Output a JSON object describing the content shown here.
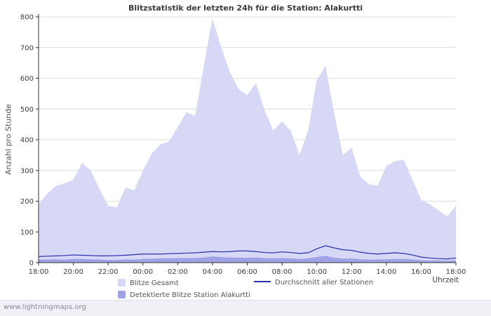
{
  "page": {
    "watermark": "www.lightningmaps.org"
  },
  "chart_data": {
    "type": "area",
    "title": "Blitzstatistik der letzten 24h für die Station: Alakurtti",
    "ylabel": "Anzahl pro Stunde",
    "xlabel": "Uhrzeit",
    "ylim": [
      0,
      800
    ],
    "y_ticks": [
      0,
      100,
      200,
      300,
      400,
      500,
      600,
      700,
      800
    ],
    "x_tick_labels": [
      "18:00",
      "20:00",
      "22:00",
      "00:00",
      "02:00",
      "04:00",
      "06:00",
      "08:00",
      "10:00",
      "12:00",
      "14:00",
      "16:00",
      "18:00"
    ],
    "x_interval_minutes": 30,
    "grid": "horizontal-only",
    "legend_position": "bottom",
    "colors": {
      "grid": "#dcdcdc",
      "axis": "#333333",
      "area_total": "#d6d8f6",
      "area_detected": "#9fa3e6",
      "avg_line": "#2b2fa8"
    },
    "series": [
      {
        "name": "Blitze Gesamt",
        "style": "area",
        "color": "#d6d8f6",
        "values": [
          190,
          225,
          250,
          258,
          270,
          325,
          300,
          240,
          185,
          180,
          245,
          235,
          300,
          355,
          385,
          395,
          440,
          490,
          478,
          640,
          795,
          700,
          620,
          565,
          545,
          585,
          495,
          430,
          460,
          430,
          350,
          430,
          595,
          640,
          485,
          350,
          375,
          280,
          255,
          250,
          315,
          330,
          335,
          270,
          205,
          190,
          170,
          150,
          185
        ]
      },
      {
        "name": "Detektierte Blitze Station Alakurtti",
        "style": "area",
        "color": "#9fa3e6",
        "values": [
          10,
          10,
          11,
          10,
          12,
          12,
          11,
          10,
          9,
          9,
          10,
          10,
          12,
          13,
          14,
          14,
          15,
          15,
          15,
          17,
          20,
          18,
          17,
          16,
          16,
          17,
          15,
          14,
          15,
          14,
          12,
          14,
          18,
          22,
          16,
          13,
          14,
          11,
          10,
          10,
          11,
          12,
          12,
          10,
          8,
          7,
          7,
          6,
          8
        ]
      },
      {
        "name": "Durchschnitt aller Stationen",
        "style": "line",
        "color": "#2b2fa8",
        "values": [
          20,
          21,
          22,
          23,
          25,
          24,
          23,
          22,
          22,
          23,
          24,
          26,
          28,
          28,
          28,
          29,
          30,
          31,
          32,
          34,
          36,
          35,
          36,
          38,
          38,
          36,
          33,
          32,
          35,
          33,
          30,
          32,
          45,
          55,
          48,
          42,
          40,
          34,
          30,
          28,
          30,
          32,
          30,
          25,
          18,
          15,
          13,
          12,
          15
        ]
      }
    ]
  }
}
